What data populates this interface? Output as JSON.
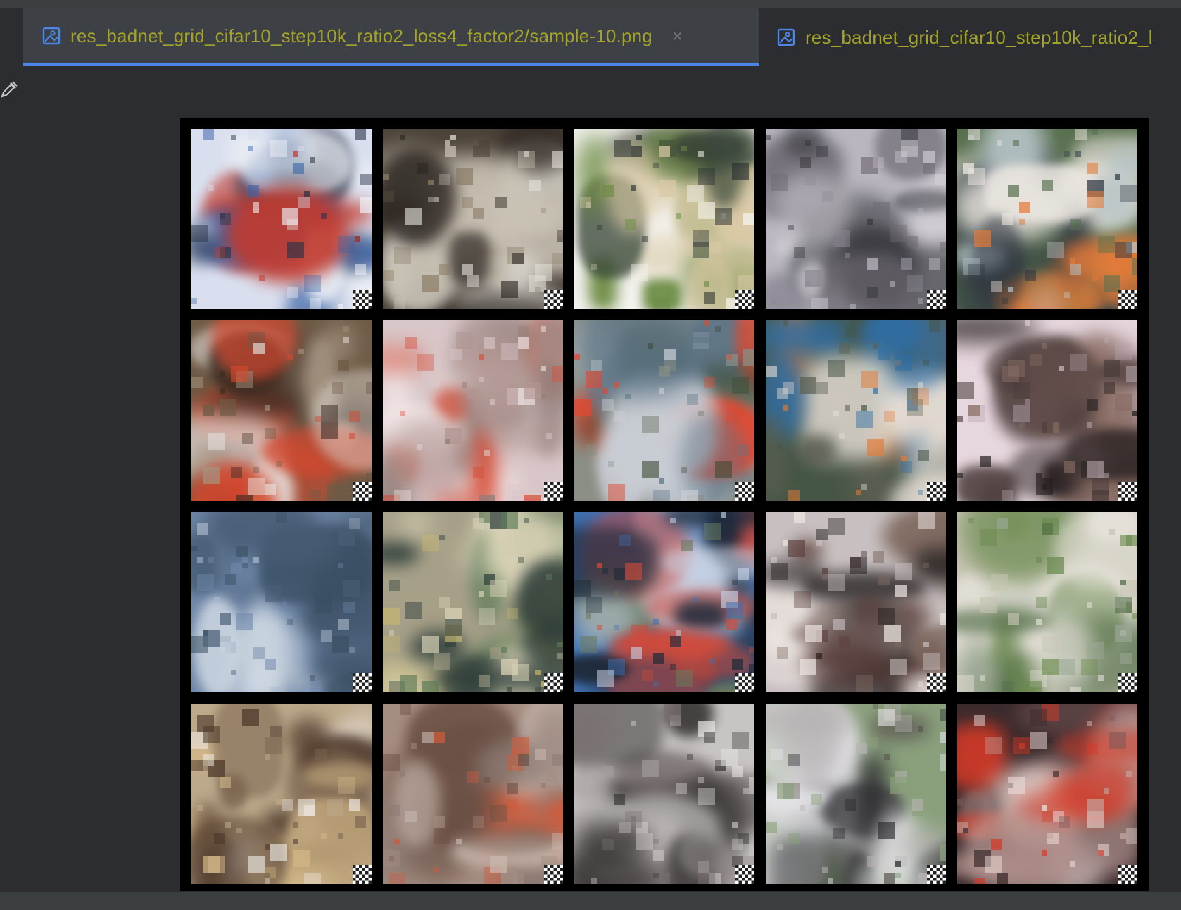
{
  "tabs": [
    {
      "label": "res_badnet_grid_cifar10_step10k_ratio2_loss4_factor2/sample-10.png",
      "active": true,
      "icon": "image-file-icon",
      "close_label": "×"
    },
    {
      "label": "res_badnet_grid_cifar10_step10k_ratio2_l",
      "active": false,
      "icon": "image-file-icon"
    }
  ],
  "toolbar": {
    "picker_icon": "color-picker-icon"
  },
  "colors": {
    "tab_label": "#a3a32b",
    "tab_accent": "#4a86e8",
    "background": "#2b2d30"
  },
  "image": {
    "rows": 4,
    "columns": 5,
    "cells": [
      {
        "palette": [
          "#d9dfee",
          "#2a3247",
          "#3a63a5",
          "#c23a2e",
          "#f0f2f7"
        ]
      },
      {
        "palette": [
          "#4c4338",
          "#c9c3b5",
          "#2a2420",
          "#8a7b66",
          "#e0ddd6"
        ]
      },
      {
        "palette": [
          "#f3f2ee",
          "#3b4a3a",
          "#d9c9a5",
          "#6c8b43",
          "#2a3130"
        ]
      },
      {
        "palette": [
          "#b9b6bf",
          "#8d8a95",
          "#3a3a40",
          "#d2cfd6",
          "#6f6a73"
        ]
      },
      {
        "palette": [
          "#58704f",
          "#b8c6c8",
          "#e37b3a",
          "#2e3540",
          "#ece7e1"
        ]
      },
      {
        "palette": [
          "#6e5a45",
          "#d5482e",
          "#e4ddd9",
          "#3a2a22",
          "#a49481"
        ]
      },
      {
        "palette": [
          "#d9c6c8",
          "#b19591",
          "#f2e8e8",
          "#d6503b",
          "#8e7b76"
        ]
      },
      {
        "palette": [
          "#8a8f86",
          "#e2472f",
          "#3b4732",
          "#c9cdd4",
          "#5d7586"
        ]
      },
      {
        "palette": [
          "#465645",
          "#2f6ea6",
          "#e7dfd6",
          "#e07c38",
          "#5c5f52"
        ]
      },
      {
        "palette": [
          "#e6d6dd",
          "#4a3b3a",
          "#8a6d64",
          "#b9a6b0",
          "#241d1e"
        ]
      },
      {
        "palette": [
          "#6f87a8",
          "#a8b6c8",
          "#3a4e62",
          "#cfd8e3",
          "#4a6078"
        ]
      },
      {
        "palette": [
          "#a6a088",
          "#5d7b58",
          "#d8d2b6",
          "#2f3e3a",
          "#c8b76f"
        ]
      },
      {
        "palette": [
          "#3f6fb0",
          "#c7d3e6",
          "#1f2a3a",
          "#d24a3a",
          "#6a7a60"
        ]
      },
      {
        "palette": [
          "#c8c0c0",
          "#5a3e3a",
          "#ede6e2",
          "#7f6a60",
          "#1e1a1a"
        ]
      },
      {
        "palette": [
          "#c6c3b2",
          "#6b8a4f",
          "#e6e2da",
          "#9aa693",
          "#4e6a44"
        ]
      },
      {
        "palette": [
          "#bca88a",
          "#f1ede8",
          "#4b3528",
          "#d3b888",
          "#7a6450"
        ]
      },
      {
        "palette": [
          "#a58d82",
          "#c9b9b0",
          "#6a5045",
          "#d05a3a",
          "#8c7a72"
        ]
      },
      {
        "palette": [
          "#c9c4c4",
          "#3c3838",
          "#e8e4e4",
          "#7a7070",
          "#a59e9e"
        ]
      },
      {
        "palette": [
          "#8aa07c",
          "#e7e6ea",
          "#2a2a2e",
          "#b8b3b5",
          "#5a5650"
        ]
      },
      {
        "palette": [
          "#3a2a2c",
          "#c7a7a1",
          "#d23a28",
          "#7a5a5a",
          "#efe0dc"
        ]
      }
    ]
  }
}
